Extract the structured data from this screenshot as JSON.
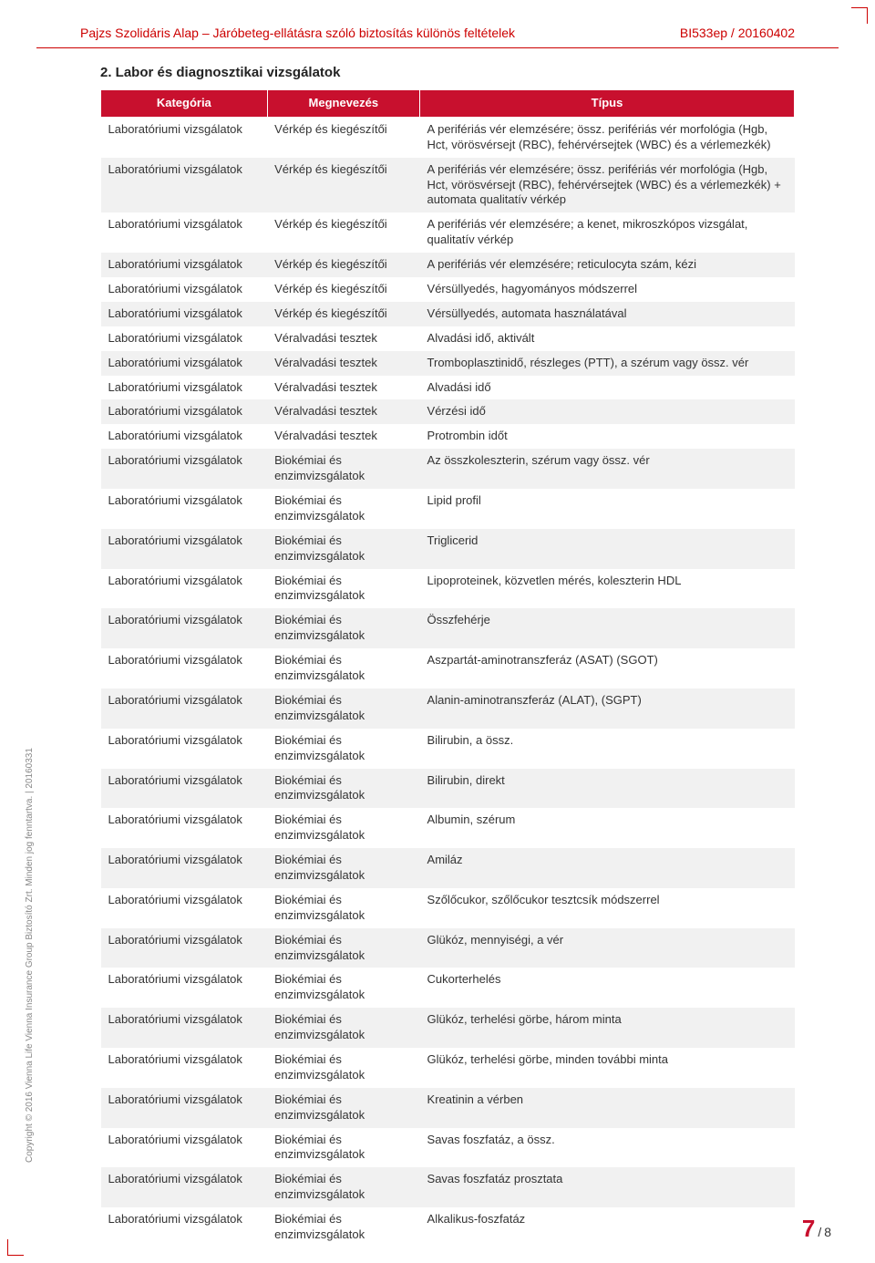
{
  "header": {
    "left": "Pajzs Szolidáris Alap – Járóbeteg-ellátásra szóló biztosítás különös feltételek",
    "right": "BI533ep / 20160402"
  },
  "section_title": "2. Labor és diagnosztikai vizsgálatok",
  "table": {
    "headers": {
      "cat": "Kategória",
      "name": "Megnevezés",
      "type": "Típus"
    },
    "rows": [
      {
        "cat": "Laboratóriumi vizsgálatok",
        "name": "Vérkép és kiegészítői",
        "type": "A perifériás vér elemzésére; össz. perifériás vér morfológia (Hgb, Hct, vörösvérsejt (RBC), fehérvérsejtek (WBC) és a vérlemezkék)"
      },
      {
        "cat": "Laboratóriumi vizsgálatok",
        "name": "Vérkép és kiegészítői",
        "type": "A perifériás vér elemzésére; össz. perifériás vér morfológia (Hgb, Hct, vörösvérsejt (RBC), fehérvérsejtek (WBC) és a vérlemezkék) + automata qualitatív vérkép"
      },
      {
        "cat": "Laboratóriumi vizsgálatok",
        "name": "Vérkép és kiegészítői",
        "type": "A perifériás vér elemzésére; a kenet, mikroszkópos vizsgálat, qualitatív vérkép"
      },
      {
        "cat": "Laboratóriumi vizsgálatok",
        "name": "Vérkép és kiegészítői",
        "type": "A perifériás vér elemzésére; reticulocyta szám, kézi"
      },
      {
        "cat": "Laboratóriumi vizsgálatok",
        "name": "Vérkép és kiegészítői",
        "type": "Vérsüllyedés, hagyományos módszerrel"
      },
      {
        "cat": "Laboratóriumi vizsgálatok",
        "name": "Vérkép és kiegészítői",
        "type": "Vérsüllyedés, automata használatával"
      },
      {
        "cat": "Laboratóriumi vizsgálatok",
        "name": "Véralvadási tesztek",
        "type": "Alvadási idő, aktivált"
      },
      {
        "cat": "Laboratóriumi vizsgálatok",
        "name": "Véralvadási tesztek",
        "type": "Tromboplasztinidő, részleges (PTT), a szérum vagy össz. vér"
      },
      {
        "cat": "Laboratóriumi vizsgálatok",
        "name": "Véralvadási tesztek",
        "type": "Alvadási idő"
      },
      {
        "cat": "Laboratóriumi vizsgálatok",
        "name": "Véralvadási tesztek",
        "type": "Vérzési idő"
      },
      {
        "cat": "Laboratóriumi vizsgálatok",
        "name": "Véralvadási tesztek",
        "type": "Protrombin időt"
      },
      {
        "cat": "Laboratóriumi vizsgálatok",
        "name": "Biokémiai és enzimvizsgálatok",
        "type": "Az összkoleszterin, szérum vagy össz. vér"
      },
      {
        "cat": "Laboratóriumi vizsgálatok",
        "name": "Biokémiai és enzimvizsgálatok",
        "type": "Lipid profil"
      },
      {
        "cat": "Laboratóriumi vizsgálatok",
        "name": "Biokémiai és enzimvizsgálatok",
        "type": "Triglicerid"
      },
      {
        "cat": "Laboratóriumi vizsgálatok",
        "name": "Biokémiai és enzimvizsgálatok",
        "type": "Lipoproteinek, közvetlen mérés, koleszterin HDL"
      },
      {
        "cat": "Laboratóriumi vizsgálatok",
        "name": "Biokémiai és enzimvizsgálatok",
        "type": "Összfehérje"
      },
      {
        "cat": "Laboratóriumi vizsgálatok",
        "name": "Biokémiai és enzimvizsgálatok",
        "type": "Aszpartát-aminotranszferáz (ASAT) (SGOT)"
      },
      {
        "cat": "Laboratóriumi vizsgálatok",
        "name": "Biokémiai és enzimvizsgálatok",
        "type": "Alanin-aminotranszferáz (ALAT), (SGPT)"
      },
      {
        "cat": "Laboratóriumi vizsgálatok",
        "name": "Biokémiai és enzimvizsgálatok",
        "type": "Bilirubin, a össz."
      },
      {
        "cat": "Laboratóriumi vizsgálatok",
        "name": "Biokémiai és enzimvizsgálatok",
        "type": "Bilirubin, direkt"
      },
      {
        "cat": "Laboratóriumi vizsgálatok",
        "name": "Biokémiai és enzimvizsgálatok",
        "type": "Albumin, szérum"
      },
      {
        "cat": "Laboratóriumi vizsgálatok",
        "name": "Biokémiai és enzimvizsgálatok",
        "type": "Amiláz"
      },
      {
        "cat": "Laboratóriumi vizsgálatok",
        "name": "Biokémiai és enzimvizsgálatok",
        "type": "Szőlőcukor, szőlőcukor tesztcsík módszerrel"
      },
      {
        "cat": "Laboratóriumi vizsgálatok",
        "name": "Biokémiai és enzimvizsgálatok",
        "type": "Glükóz, mennyiségi, a vér"
      },
      {
        "cat": "Laboratóriumi vizsgálatok",
        "name": "Biokémiai és enzimvizsgálatok",
        "type": "Cukorterhelés"
      },
      {
        "cat": "Laboratóriumi vizsgálatok",
        "name": "Biokémiai és enzimvizsgálatok",
        "type": "Glükóz, terhelési görbe, három minta"
      },
      {
        "cat": "Laboratóriumi vizsgálatok",
        "name": "Biokémiai és enzimvizsgálatok",
        "type": "Glükóz, terhelési görbe, minden további minta"
      },
      {
        "cat": "Laboratóriumi vizsgálatok",
        "name": "Biokémiai és enzimvizsgálatok",
        "type": "Kreatinin a vérben"
      },
      {
        "cat": "Laboratóriumi vizsgálatok",
        "name": "Biokémiai és enzimvizsgálatok",
        "type": "Savas foszfatáz, a össz."
      },
      {
        "cat": "Laboratóriumi vizsgálatok",
        "name": "Biokémiai és enzimvizsgálatok",
        "type": "Savas foszfatáz prosztata"
      },
      {
        "cat": "Laboratóriumi vizsgálatok",
        "name": "Biokémiai és enzimvizsgálatok",
        "type": "Alkalikus-foszfatáz"
      }
    ]
  },
  "copyright": "Copyright © 2016 Vienna Life Vienna Insurance Group Biztosító Zrt. Minden jog fenntartva. | 20160331",
  "page": {
    "current": "7",
    "total": "8"
  },
  "colors": {
    "brand_red": "#c8102e",
    "row_even": "#f1f1f1",
    "row_odd": "#ffffff",
    "text": "#333333"
  }
}
